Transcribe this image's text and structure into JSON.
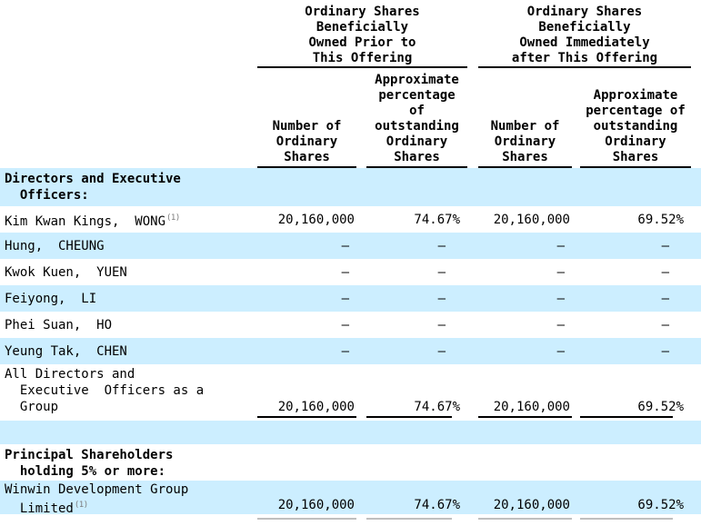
{
  "colors": {
    "stripe": "#cceeff",
    "rule": "#000000",
    "footnote_gray": "#7d7d7d"
  },
  "header": {
    "group1": "Ordinary Shares\nBeneficially\nOwned Prior to\nThis Offering",
    "group2": "Ordinary Shares\nBeneficially\nOwned Immediately\nafter This Offering",
    "col1": "Number of\nOrdinary\nShares",
    "col2": "Approximate\npercentage\nof\noutstanding\nOrdinary\nShares",
    "col3": "Number of\nOrdinary\nShares",
    "col4": "Approximate\npercentage of\noutstanding\nOrdinary\nShares"
  },
  "rows": [
    {
      "label": "Directors and Executive\n  Officers:"
    },
    {
      "label": "Kim Kwan Kings,  WONG",
      "footnote": "(1)",
      "shares_before": "20,160,000",
      "pct_before": "74.67%",
      "shares_after": "20,160,000",
      "pct_after": "69.52%"
    },
    {
      "label": "Hung,  CHEUNG",
      "shares_before": "—",
      "pct_before": "—",
      "shares_after": "—",
      "pct_after": "—"
    },
    {
      "label": "Kwok Kuen,  YUEN",
      "shares_before": "—",
      "pct_before": "—",
      "shares_after": "—",
      "pct_after": "—"
    },
    {
      "label": "Feiyong,  LI",
      "shares_before": "—",
      "pct_before": "—",
      "shares_after": "—",
      "pct_after": "—"
    },
    {
      "label": "Phei Suan,  HO",
      "shares_before": "—",
      "pct_before": "—",
      "shares_after": "—",
      "pct_after": "—"
    },
    {
      "label": "Yeung Tak,  CHEN",
      "shares_before": "—",
      "pct_before": "—",
      "shares_after": "—",
      "pct_after": "—"
    },
    {
      "label": "All Directors and\n  Executive  Officers as a\n  Group",
      "shares_before": "20,160,000",
      "pct_before": "74.67%",
      "shares_after": "20,160,000",
      "pct_after": "69.52%"
    },
    {
      "label": ""
    },
    {
      "label": "Principal Shareholders\n  holding 5% or more:"
    },
    {
      "label": "Winwin Development Group\n  Limited",
      "footnote": "(1)",
      "shares_before": "20,160,000",
      "pct_before": "74.67%",
      "shares_after": "20,160,000",
      "pct_after": "69.52%"
    }
  ]
}
